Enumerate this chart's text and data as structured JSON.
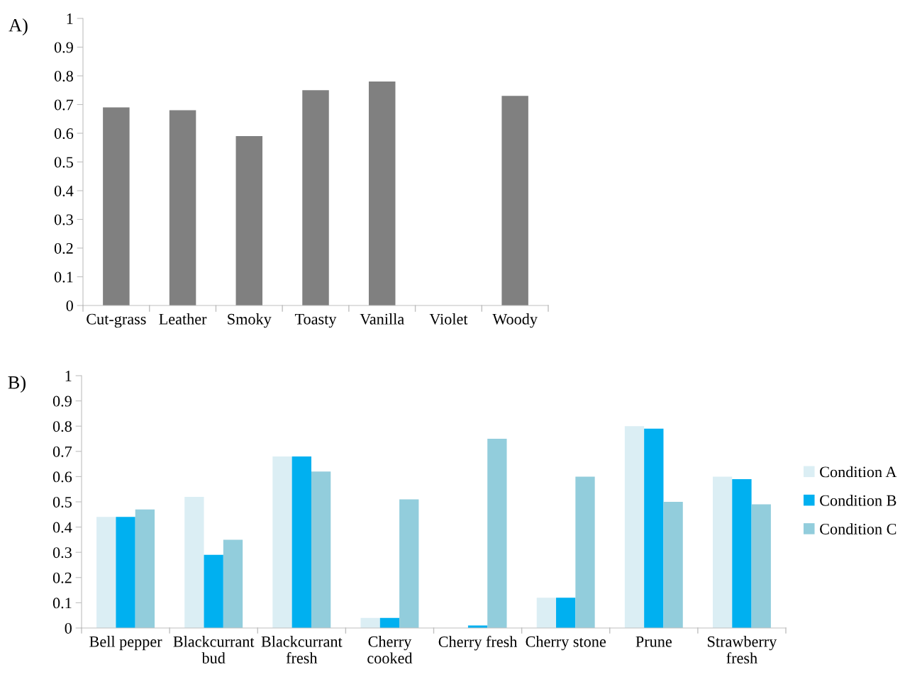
{
  "chart_data": [
    {
      "type": "bar",
      "title": "A)",
      "categories": [
        "Cut-grass",
        "Leather",
        "Smoky",
        "Toasty",
        "Vanilla",
        "Violet",
        "Woody"
      ],
      "series": [
        {
          "color": "#808080",
          "values": [
            0.69,
            0.68,
            0.59,
            0.75,
            0.78,
            0,
            0.73
          ]
        }
      ],
      "ylim": [
        0,
        1
      ],
      "yticks": [
        0,
        0.1,
        0.2,
        0.3,
        0.4,
        0.5,
        0.6,
        0.7,
        0.8,
        0.9,
        1
      ],
      "grid": false,
      "legend": false
    },
    {
      "type": "bar",
      "title": "B)",
      "categories": [
        "Bell pepper",
        "Blackcurrant bud",
        "Blackcurrant fresh",
        "Cherry cooked",
        "Cherry fresh",
        "Cherry stone",
        "Prune",
        "Strawberry fresh"
      ],
      "series": [
        {
          "name": "Condition A",
          "color": "#dbeef4",
          "values": [
            0.44,
            0.52,
            0.68,
            0.04,
            null,
            0.12,
            0.8,
            0.6
          ]
        },
        {
          "name": "Condition B",
          "color": "#00b0f0",
          "values": [
            0.44,
            0.29,
            0.68,
            0.04,
            0.01,
            0.12,
            0.79,
            0.59
          ]
        },
        {
          "name": "Condition C",
          "color": "#92cddc",
          "values": [
            0.47,
            0.35,
            0.62,
            0.51,
            0.75,
            0.6,
            0.5,
            0.49
          ]
        }
      ],
      "ylim": [
        0,
        1
      ],
      "yticks": [
        0,
        0.1,
        0.2,
        0.3,
        0.4,
        0.5,
        0.6,
        0.7,
        0.8,
        0.9,
        1
      ],
      "grid": false,
      "legend": "right"
    }
  ]
}
